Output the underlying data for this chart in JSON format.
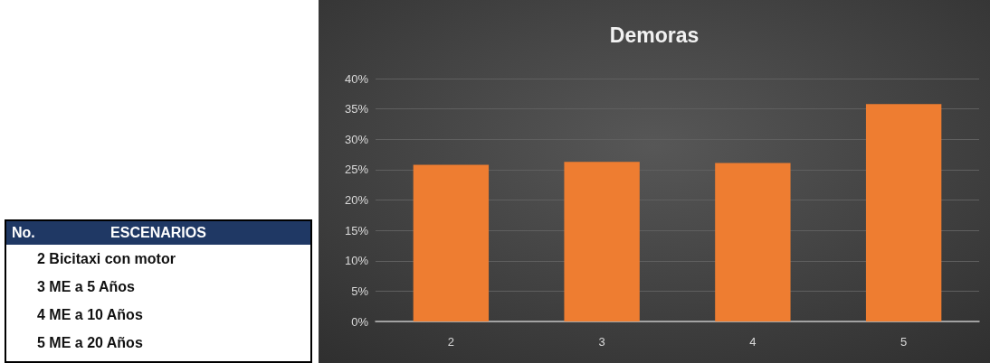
{
  "chart_data": [
    {
      "type": "bar",
      "title": "Demoras",
      "categories": [
        "2",
        "3",
        "4",
        "5"
      ],
      "values": [
        25.8,
        26.3,
        26.1,
        35.8
      ],
      "color": "#ee7d31",
      "ylim": [
        0,
        40
      ],
      "yticks": [
        {
          "value": 0,
          "label": "0%"
        },
        {
          "value": 5,
          "label": "5%"
        },
        {
          "value": 10,
          "label": "10%"
        },
        {
          "value": 15,
          "label": "15%"
        },
        {
          "value": 20,
          "label": "20%"
        },
        {
          "value": 25,
          "label": "25%"
        },
        {
          "value": 30,
          "label": "30%"
        },
        {
          "value": 35,
          "label": "35%"
        },
        {
          "value": 40,
          "label": "40%"
        }
      ],
      "grid": "y"
    },
    {
      "type": "other",
      "annotations": [
        "No.",
        "ESCENARIOS",
        "2 Bicitaxi con motor",
        "3 ME a 5 Años",
        "4 ME a 10 Años",
        "5 ME a 20 Años"
      ]
    }
  ]
}
